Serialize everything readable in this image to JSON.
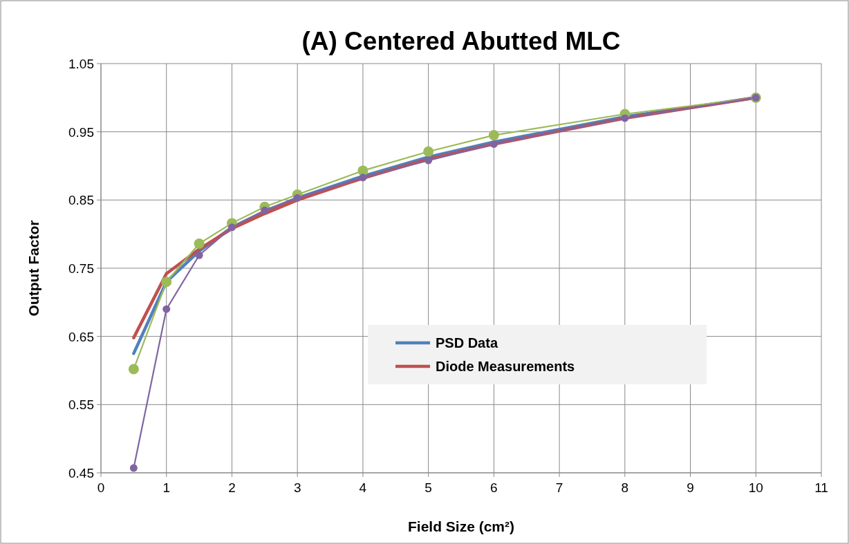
{
  "chart_data": {
    "type": "line",
    "title": "(A) Centered Abutted MLC",
    "xlabel": "Field Size (cm²)",
    "ylabel": "Output Factor",
    "x": [
      0.5,
      1,
      1.5,
      2,
      2.5,
      3,
      4,
      5,
      6,
      8,
      10
    ],
    "series": [
      {
        "name": "PSD Data",
        "color": "#4f81bd",
        "marker": "none",
        "values": [
          0.625,
          0.73,
          0.775,
          0.81,
          0.833,
          0.853,
          0.885,
          0.913,
          0.935,
          0.972,
          1.0
        ]
      },
      {
        "name": "Diode Measurements",
        "color": "#c0504d",
        "marker": "none",
        "values": [
          0.648,
          0.742,
          0.778,
          0.808,
          0.83,
          0.85,
          0.882,
          0.91,
          0.932,
          0.97,
          1.0
        ]
      },
      {
        "color": "#9bbb59",
        "marker": "circle",
        "values": [
          0.602,
          0.73,
          0.786,
          0.816,
          0.84,
          0.858,
          0.893,
          0.921,
          0.945,
          0.976,
          1.0
        ]
      },
      {
        "color": "#8064a2",
        "marker": "circle",
        "values": [
          0.457,
          0.69,
          0.769,
          0.81,
          0.835,
          0.853,
          0.883,
          0.908,
          0.932,
          0.97,
          1.0
        ]
      }
    ],
    "xlim": [
      0,
      11
    ],
    "xticks": [
      0,
      1,
      2,
      3,
      4,
      5,
      6,
      7,
      8,
      9,
      10,
      11
    ],
    "ylim": [
      0.45,
      1.05
    ],
    "yticks": [
      {
        "value": 0.45,
        "label": "0.45"
      },
      {
        "value": 0.55,
        "label": "0.55"
      },
      {
        "value": 0.65,
        "label": "0.65"
      },
      {
        "value": 0.75,
        "label": "0.75"
      },
      {
        "value": 0.85,
        "label": "0.85"
      },
      {
        "value": 0.95,
        "label": "0.95"
      },
      {
        "value": 1.05,
        "label": "1.05"
      }
    ],
    "grid": true,
    "legend": "bottom right",
    "line_style": "solid"
  }
}
